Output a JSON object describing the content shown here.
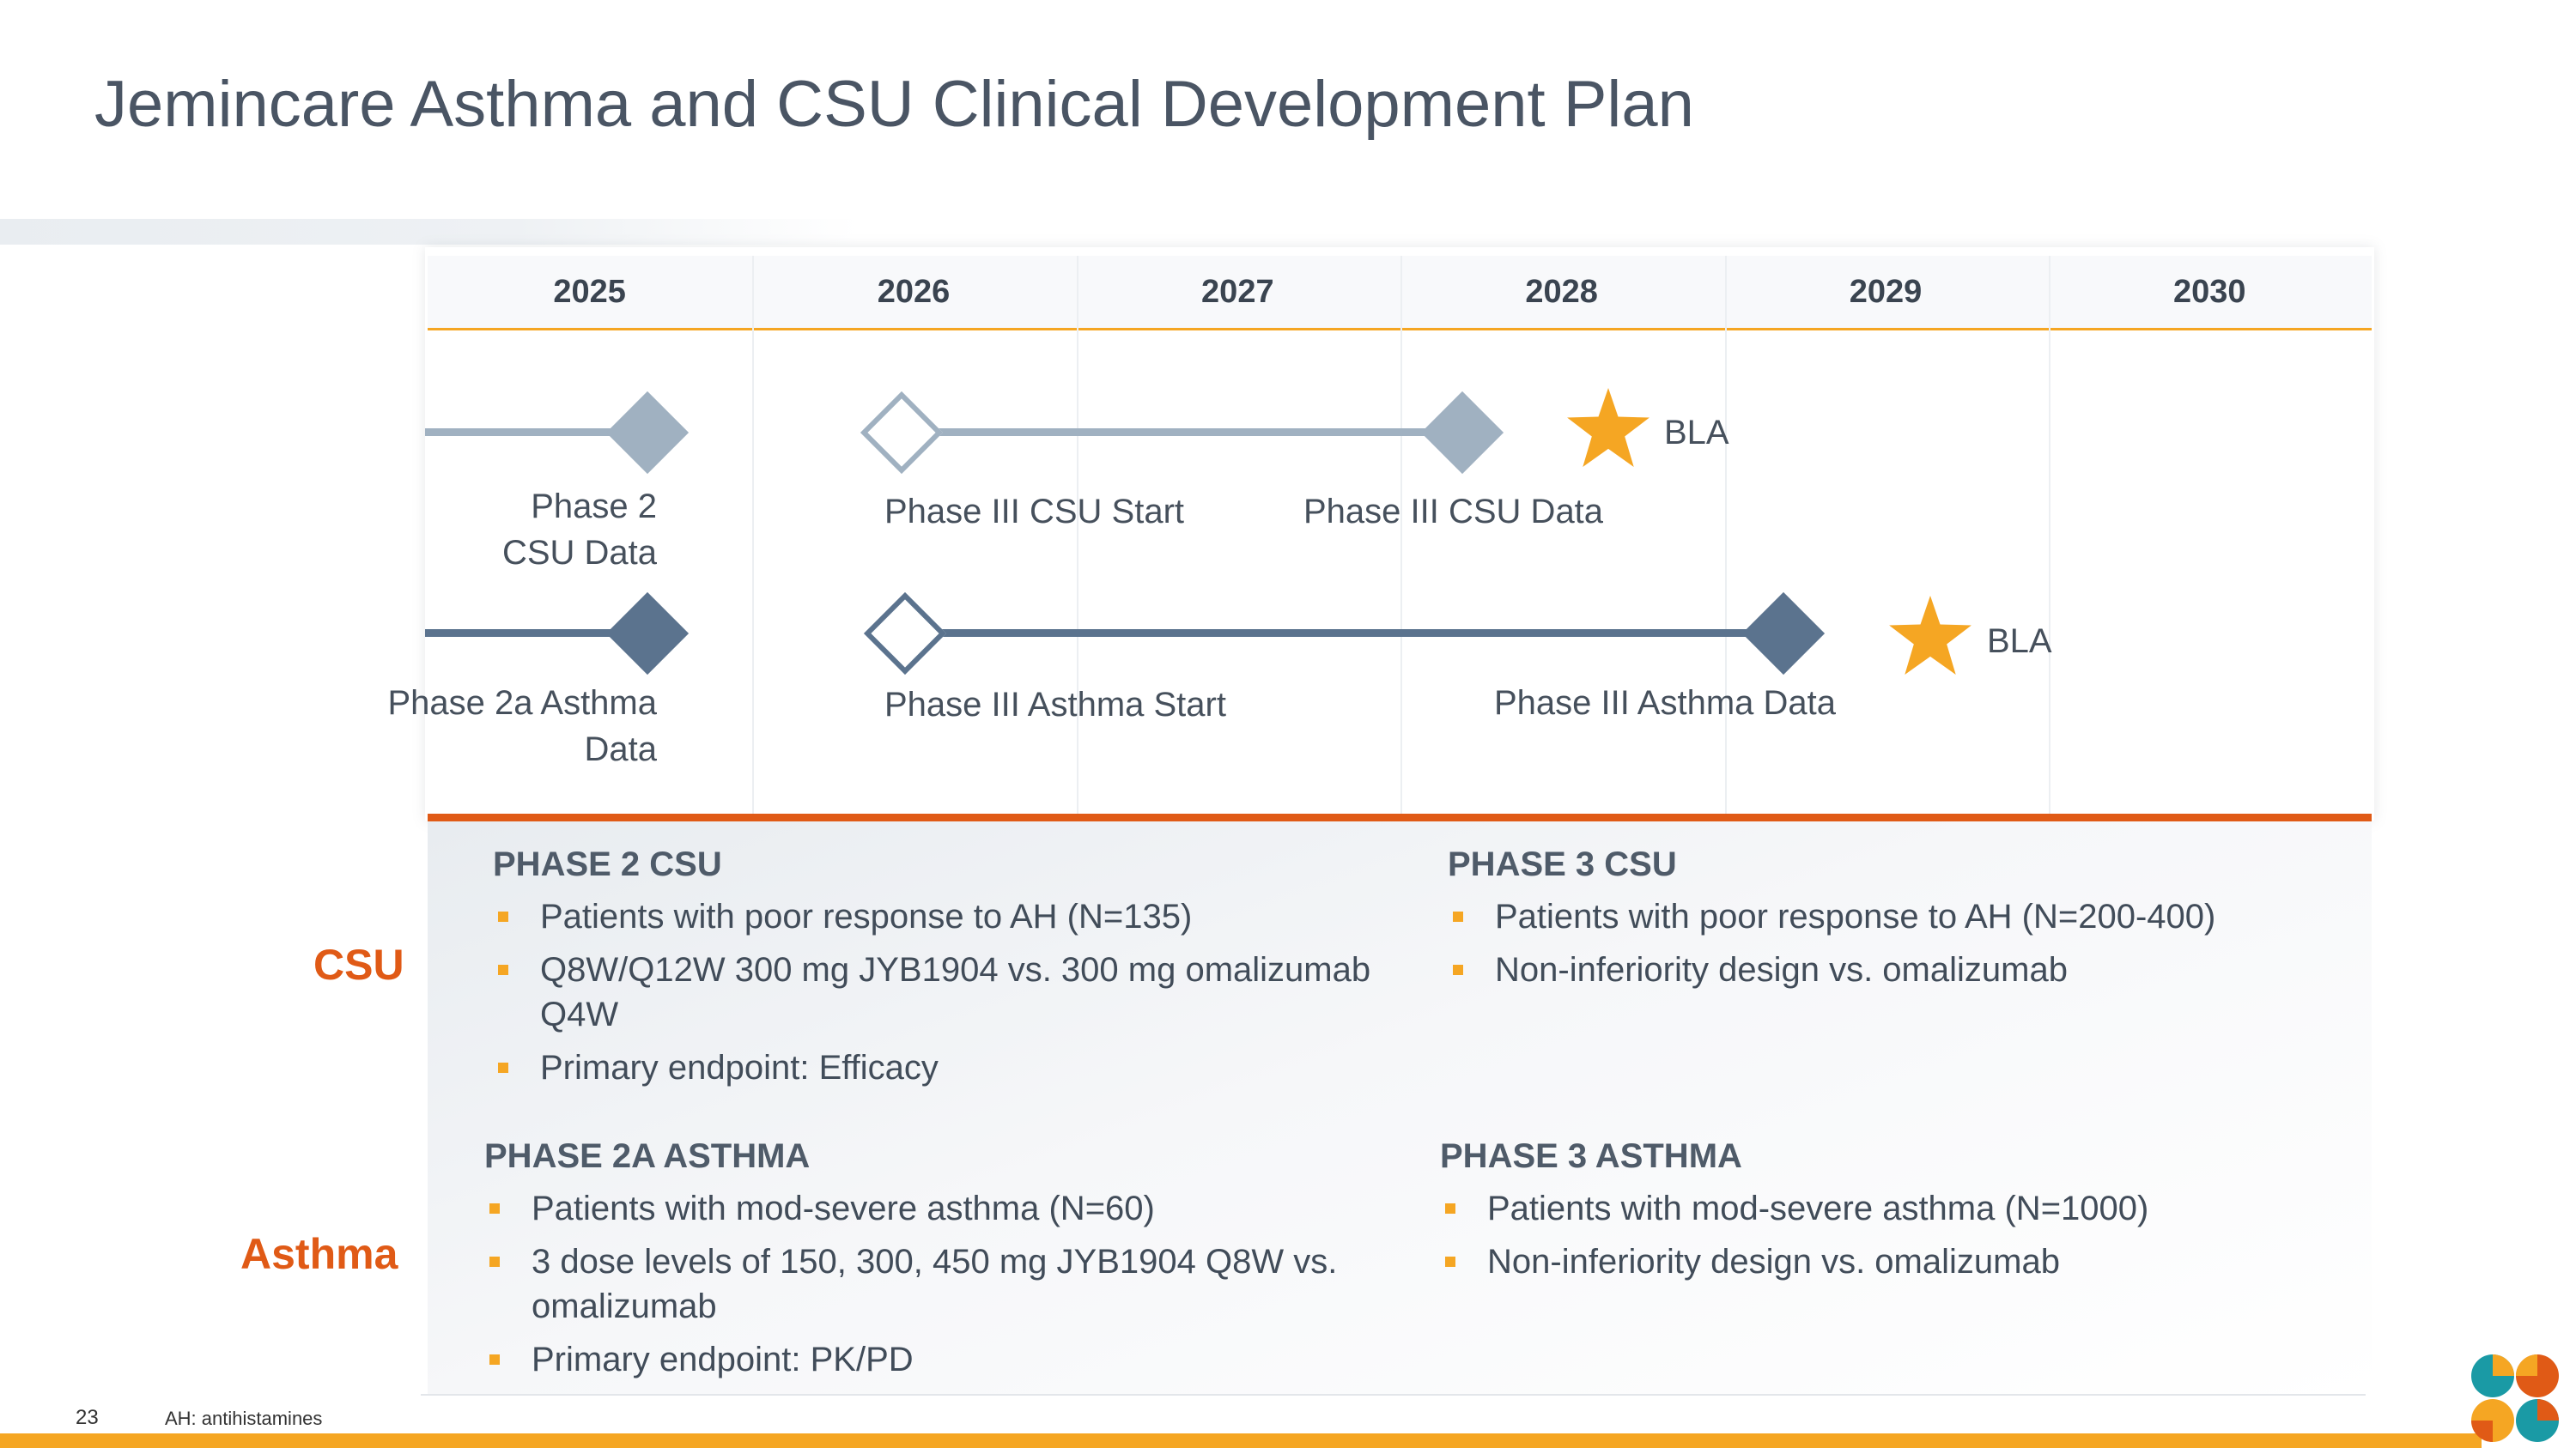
{
  "title": "Jemincare Asthma and CSU Clinical Development Plan",
  "years": [
    "2025",
    "2026",
    "2027",
    "2028",
    "2029",
    "2030"
  ],
  "milestones": {
    "csu_phase2": "Phase 2\nCSU Data",
    "csu_p3_start": "Phase III CSU Start",
    "csu_p3_data": "Phase III CSU Data",
    "csu_bla": "BLA",
    "asthma_phase2a": "Phase 2a Asthma\nData",
    "asthma_p3_start": "Phase III Asthma Start",
    "asthma_p3_data": "Phase III Asthma Data",
    "asthma_bla": "BLA"
  },
  "rows": {
    "csu": "CSU",
    "asthma": "Asthma"
  },
  "phase2_csu": {
    "heading": "PHASE 2 CSU",
    "bullets": [
      "Patients with poor response to AH (N=135)",
      "Q8W/Q12W 300 mg JYB1904 vs. 300 mg omalizumab Q4W",
      "Primary endpoint: Efficacy"
    ]
  },
  "phase3_csu": {
    "heading": "PHASE 3 CSU",
    "bullets": [
      "Patients with poor response to AH (N=200-400)",
      "Non-inferiority design vs. omalizumab"
    ]
  },
  "phase2a_asthma": {
    "heading": "PHASE 2A ASTHMA",
    "bullets": [
      "Patients with mod-severe asthma (N=60)",
      "3 dose levels of 150, 300, 450 mg JYB1904 Q8W vs. omalizumab",
      "Primary endpoint: PK/PD"
    ]
  },
  "phase3_asthma": {
    "heading": "PHASE 3 ASTHMA",
    "bullets": [
      "Patients with mod-severe asthma (N=1000)",
      "Non-inferiority design vs. omalizumab"
    ]
  },
  "footer": {
    "page": "23",
    "note": "AH: antihistamines"
  },
  "colors": {
    "accent": "#f5a623",
    "orange": "#e05a16",
    "gray": "#a0b1c1",
    "dark": "#5b738e"
  }
}
